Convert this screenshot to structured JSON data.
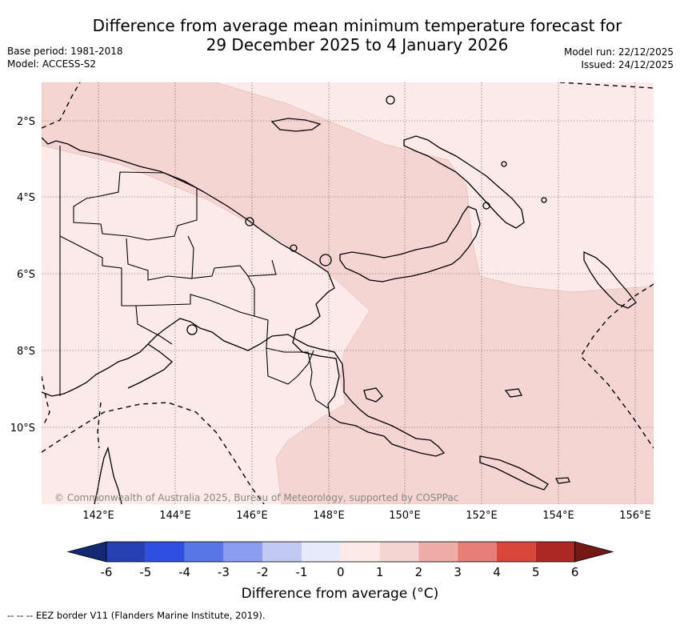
{
  "title": {
    "line1": "Difference from average mean minimum temperature forecast for",
    "line2": "29 December 2025 to 4 January 2026"
  },
  "meta": {
    "base_period": "Base period: 1981-2018",
    "model": "Model: ACCESS-S2",
    "model_run": "Model run: 22/12/2025",
    "issued": "Issued: 24/12/2025"
  },
  "map": {
    "lat_labels": [
      "2°S",
      "4°S",
      "6°S",
      "8°S",
      "10°S"
    ],
    "lon_labels": [
      "142°E",
      "144°E",
      "146°E",
      "148°E",
      "150°E",
      "152°E",
      "154°E",
      "156°E"
    ],
    "copyright": "© Commonwealth of Australia 2025, Bureau of Meteorology, supported by COSPPac"
  },
  "colorbar": {
    "tick_labels": [
      "-6",
      "-5",
      "-4",
      "-3",
      "-2",
      "-1",
      "0",
      "1",
      "2",
      "3",
      "4",
      "5",
      "6"
    ],
    "colors": [
      "#122973",
      "#2440b2",
      "#2e4fdf",
      "#5876e6",
      "#8a9ced",
      "#c2c9f5",
      "#e8ebf9",
      "#fbeae7",
      "#f5d5d2",
      "#f0aca6",
      "#e67f77",
      "#d9473b",
      "#ae2823",
      "#731914"
    ],
    "title": "Difference from average (°C)"
  },
  "footer": "--  --  -- EEZ border V11 (Flanders Marine Institute, 2019)."
}
